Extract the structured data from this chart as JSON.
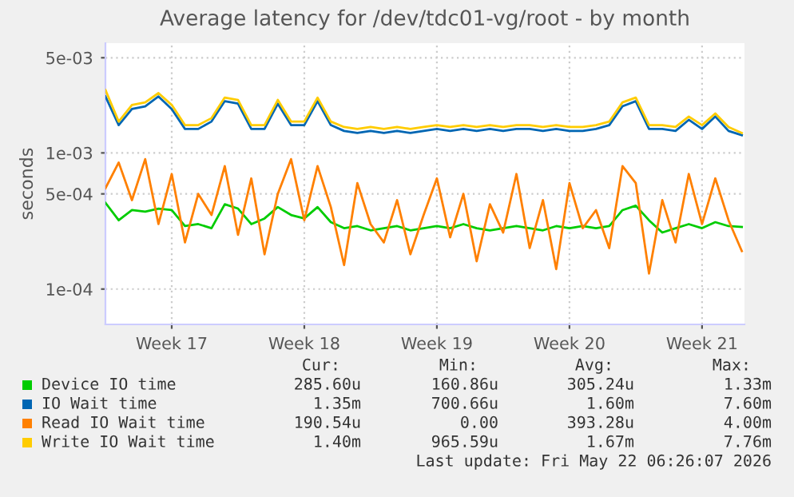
{
  "chart_data": {
    "type": "line",
    "title": "Average latency for /dev/tdc01-vg/root - by month",
    "ylabel": "seconds",
    "categories": [
      null,
      null,
      null,
      null,
      null,
      "Week 17",
      null,
      null,
      null,
      null,
      null,
      null,
      null,
      null,
      null,
      "Week 18",
      null,
      null,
      null,
      null,
      null,
      null,
      null,
      null,
      null,
      "Week 19",
      null,
      null,
      null,
      null,
      null,
      null,
      null,
      null,
      null,
      "Week 20",
      null,
      null,
      null,
      null,
      null,
      null,
      null,
      null,
      null,
      "Week 21",
      null,
      null,
      null
    ],
    "log": true,
    "ylim": [
      5.5e-05,
      0.0064
    ],
    "yticks": [
      {
        "value": 0.0001,
        "label": "1e-04"
      },
      {
        "value": 0.0005,
        "label": "5e-04"
      },
      {
        "value": 0.001,
        "label": "1e-03"
      },
      {
        "value": 0.005,
        "label": "5e-03"
      }
    ],
    "grid": true,
    "legend": "bottom",
    "marker": "none",
    "line_style": "solid",
    "series": [
      {
        "name": "Device IO time",
        "color": "#00cc00",
        "values": [
          0.00043,
          0.00032,
          0.00038,
          0.00037,
          0.00039,
          0.00038,
          0.00029,
          0.0003,
          0.00028,
          0.00042,
          0.00039,
          0.0003,
          0.00033,
          0.0004,
          0.00035,
          0.00033,
          0.0004,
          0.00031,
          0.00028,
          0.00029,
          0.00027,
          0.00028,
          0.00029,
          0.00027,
          0.00028,
          0.00029,
          0.00028,
          0.0003,
          0.00028,
          0.00027,
          0.00028,
          0.00029,
          0.00028,
          0.00027,
          0.00029,
          0.00028,
          0.00029,
          0.00028,
          0.00029,
          0.00038,
          0.00041,
          0.00032,
          0.00026,
          0.00028,
          0.0003,
          0.00028,
          0.00031,
          0.00029,
          0.000286
        ]
      },
      {
        "name": "IO Wait time",
        "color": "#0066b3",
        "values": [
          0.0026,
          0.0016,
          0.0021,
          0.0022,
          0.0026,
          0.0021,
          0.0015,
          0.0015,
          0.0017,
          0.0024,
          0.0023,
          0.0015,
          0.0015,
          0.0023,
          0.0016,
          0.0016,
          0.0024,
          0.0016,
          0.00145,
          0.0014,
          0.00145,
          0.0014,
          0.00145,
          0.0014,
          0.00145,
          0.0015,
          0.00145,
          0.0015,
          0.00145,
          0.0015,
          0.00145,
          0.0015,
          0.0015,
          0.00145,
          0.0015,
          0.00145,
          0.00145,
          0.0015,
          0.0016,
          0.0022,
          0.0024,
          0.0015,
          0.0015,
          0.00145,
          0.00175,
          0.0015,
          0.00185,
          0.00145,
          0.00135
        ]
      },
      {
        "name": "Read IO Wait time",
        "color": "#ff8000",
        "values": [
          0.00055,
          0.00085,
          0.00045,
          0.0009,
          0.0003,
          0.0007,
          0.00022,
          0.0005,
          0.00035,
          0.0008,
          0.00025,
          0.00065,
          0.00018,
          0.0005,
          0.0009,
          0.00032,
          0.0008,
          0.0004,
          0.00015,
          0.0006,
          0.0003,
          0.00022,
          0.00045,
          0.00018,
          0.00035,
          0.00065,
          0.00024,
          0.0005,
          0.00016,
          0.00042,
          0.00026,
          0.0007,
          0.0002,
          0.00045,
          0.00014,
          0.0006,
          0.00028,
          0.00038,
          0.0002,
          0.0008,
          0.0006,
          0.00013,
          0.00045,
          0.00022,
          0.0007,
          0.0003,
          0.00065,
          0.00032,
          0.00019
        ]
      },
      {
        "name": "Write IO Wait time",
        "color": "#ffcc00",
        "values": [
          0.0029,
          0.0017,
          0.00225,
          0.00235,
          0.00275,
          0.00225,
          0.0016,
          0.0016,
          0.0018,
          0.00255,
          0.00245,
          0.0016,
          0.0016,
          0.00245,
          0.0017,
          0.0017,
          0.00255,
          0.0017,
          0.00155,
          0.0015,
          0.00155,
          0.0015,
          0.00155,
          0.0015,
          0.00155,
          0.0016,
          0.00155,
          0.0016,
          0.00155,
          0.0016,
          0.00155,
          0.0016,
          0.0016,
          0.00155,
          0.0016,
          0.00155,
          0.00155,
          0.0016,
          0.0017,
          0.00235,
          0.00255,
          0.0016,
          0.0016,
          0.00155,
          0.00185,
          0.0016,
          0.00195,
          0.00155,
          0.0014
        ]
      }
    ],
    "annotations": [
      "Cur:",
      "Min:",
      "Avg:",
      "Max:",
      "285.60u",
      "160.86u",
      "305.24u",
      "1.33m",
      "1.35m",
      "700.66u",
      "1.60m",
      "7.60m",
      "190.54u",
      "0.00",
      "393.28u",
      "4.00m",
      "1.40m",
      "965.59u",
      "1.67m",
      "7.76m",
      "Last update: Fri May 22 06:26:07 2026"
    ]
  }
}
